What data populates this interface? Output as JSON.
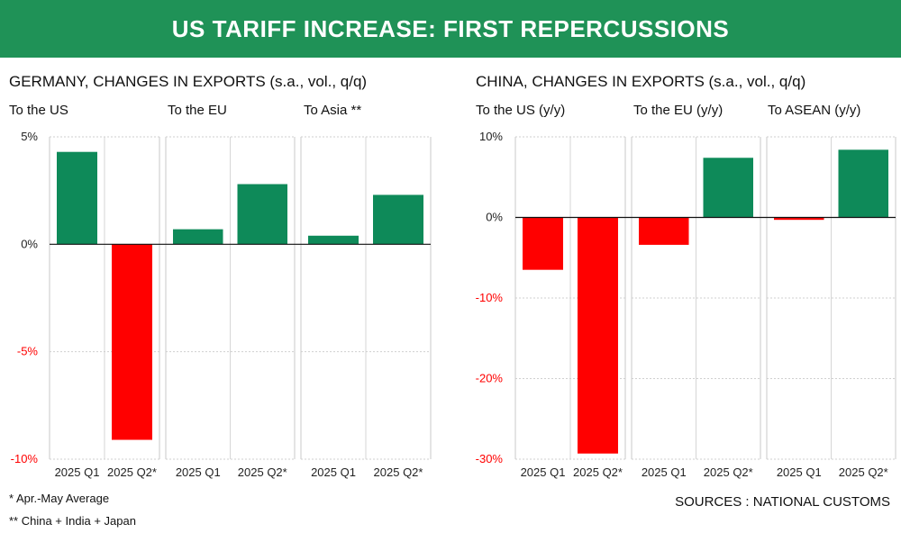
{
  "header": {
    "title": "US TARIFF INCREASE: FIRST REPERCUSSIONS"
  },
  "colors": {
    "banner": "#1f9257",
    "positive": "#0e8a59",
    "negative": "#ff0000",
    "gridline": "#c8c8c8"
  },
  "chart_data": [
    {
      "type": "bar",
      "title_strong": "GERMANY",
      "title_rest": ", CHANGES IN EXPORTS (s.a., vol., q/q)",
      "ylim": [
        -10,
        5
      ],
      "yticks": [
        5,
        0,
        -5,
        -10
      ],
      "ytick_labels": [
        "5%",
        "0%",
        "-5%",
        "-10%"
      ],
      "panels": [
        {
          "label": "To the US",
          "categories": [
            "2025 Q1",
            "2025 Q2*"
          ],
          "values": [
            4.3,
            -9.1
          ]
        },
        {
          "label": "To the EU",
          "categories": [
            "2025 Q1",
            "2025 Q2*"
          ],
          "values": [
            0.7,
            2.8
          ]
        },
        {
          "label": "To Asia **",
          "categories": [
            "2025 Q1",
            "2025 Q2*"
          ],
          "values": [
            0.4,
            2.3
          ]
        }
      ]
    },
    {
      "type": "bar",
      "title_strong": "CHINA",
      "title_rest": ", CHANGES IN EXPORTS (s.a., vol., q/q)",
      "ylim": [
        -30,
        10
      ],
      "yticks": [
        10,
        0,
        -10,
        -20,
        -30
      ],
      "ytick_labels": [
        "10%",
        "0%",
        "-10%",
        "-20%",
        "-30%"
      ],
      "panels": [
        {
          "label": "To the US (y/y)",
          "categories": [
            "2025 Q1",
            "2025 Q2*"
          ],
          "values": [
            -6.5,
            -29.3
          ]
        },
        {
          "label": "To the EU (y/y)",
          "categories": [
            "2025 Q1",
            "2025 Q2*"
          ],
          "values": [
            -3.4,
            7.4
          ]
        },
        {
          "label": "To ASEAN (y/y)",
          "categories": [
            "2025 Q1",
            "2025 Q2*"
          ],
          "values": [
            -0.3,
            8.4
          ]
        }
      ]
    }
  ],
  "footnotes": [
    "* Apr.-May Average",
    "** China + India + Japan"
  ],
  "sources": "SOURCES : NATIONAL CUSTOMS"
}
